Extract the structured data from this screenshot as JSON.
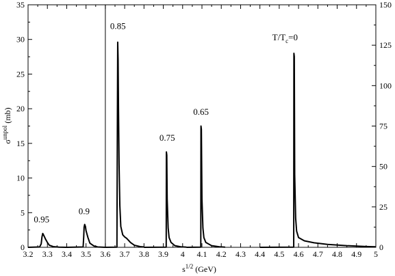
{
  "chart_data": {
    "type": "line",
    "xlabel": {
      "base": "s",
      "sup": "1/2",
      "unit": " (GeV)"
    },
    "ylabel_left": {
      "base": "σ",
      "sup": "unpol",
      "unit": " (mb)"
    },
    "x_ticks": [
      "3.2",
      "3.3",
      "3.4",
      "3.5",
      "3.6",
      "3.7",
      "3.8",
      "3.9",
      "4",
      "4.1",
      "4.2",
      "4.3",
      "4.4",
      "4.5",
      "4.6",
      "4.7",
      "4.8",
      "4.9",
      "5"
    ],
    "x_tick_values": [
      3.2,
      3.3,
      3.4,
      3.5,
      3.6,
      3.7,
      3.8,
      3.9,
      4.0,
      4.1,
      4.2,
      4.3,
      4.4,
      4.5,
      4.6,
      4.7,
      4.8,
      4.9,
      5.0
    ],
    "y_left_ticks": [
      "0",
      "5",
      "10",
      "15",
      "20",
      "25",
      "30",
      "35"
    ],
    "y_left_tick_values": [
      0,
      5,
      10,
      15,
      20,
      25,
      30,
      35
    ],
    "y_right_ticks": [
      "0",
      "25",
      "50",
      "75",
      "100",
      "125",
      "150"
    ],
    "y_right_tick_values": [
      0,
      25,
      50,
      75,
      100,
      125,
      150
    ],
    "xlim": [
      3.2,
      5.0
    ],
    "ylim_left": [
      0,
      35
    ],
    "ylim_right": [
      0,
      150
    ],
    "divider_x": 3.6,
    "series": [
      {
        "label": "0.95",
        "axis": "left",
        "label_at": [
          3.27,
          3.6
        ],
        "x": [
          3.2,
          3.26,
          3.268,
          3.272,
          3.276,
          3.28,
          3.29,
          3.3,
          3.31,
          3.33,
          3.36,
          3.4
        ],
        "y": [
          0,
          0.05,
          0.5,
          1.5,
          2.0,
          1.8,
          1.2,
          0.7,
          0.3,
          0.1,
          0.03,
          0
        ]
      },
      {
        "label": "0.9",
        "axis": "left",
        "label_at": [
          3.49,
          4.8
        ],
        "x": [
          3.4,
          3.485,
          3.488,
          3.49,
          3.493,
          3.497,
          3.5,
          3.51,
          3.52,
          3.54,
          3.56,
          3.6
        ],
        "y": [
          0,
          0.05,
          1.5,
          2.9,
          3.3,
          3.0,
          2.4,
          1.4,
          0.6,
          0.2,
          0.05,
          0
        ]
      },
      {
        "label": "0.85",
        "axis": "left",
        "label_at": [
          3.665,
          31.5
        ],
        "x": [
          3.6,
          3.66,
          3.6605,
          3.662,
          3.664,
          3.666,
          3.668,
          3.671,
          3.675,
          3.68,
          3.69,
          3.7,
          3.71,
          3.72,
          3.73,
          3.75,
          3.78,
          3.8
        ],
        "y": [
          0,
          0.02,
          5,
          16,
          29.6,
          27,
          20,
          12,
          6,
          3,
          1.8,
          1.5,
          1.3,
          1.0,
          0.7,
          0.3,
          0.1,
          0.05
        ]
      },
      {
        "label": "0.75",
        "axis": "right",
        "label_at": [
          3.92,
          66
        ],
        "x": [
          3.8,
          3.915,
          3.916,
          3.918,
          3.92,
          3.925,
          3.93,
          3.94,
          3.96,
          3.99,
          4.02
        ],
        "y": [
          0,
          0.1,
          59,
          57,
          30,
          12,
          6,
          3,
          1,
          0.3,
          0.1
        ]
      },
      {
        "label": "0.65",
        "axis": "right",
        "label_at": [
          4.095,
          82
        ],
        "x": [
          4.02,
          4.094,
          4.095,
          4.097,
          4.1,
          4.105,
          4.11,
          4.12,
          4.15,
          4.19,
          4.22
        ],
        "y": [
          0,
          0.1,
          75,
          73,
          30,
          12,
          6,
          3,
          1,
          0.3,
          0.1
        ]
      },
      {
        "label": "T/T",
        "label_sub": "c",
        "label_suffix": "=0",
        "axis": "right",
        "label_at": [
          4.53,
          128
        ],
        "x": [
          4.4,
          4.575,
          4.576,
          4.578,
          4.58,
          4.585,
          4.59,
          4.6,
          4.63,
          4.68,
          4.75,
          4.85,
          4.95,
          5.0
        ],
        "y": [
          0,
          0.1,
          120,
          118,
          45,
          18,
          10,
          6,
          4,
          2.8,
          1.8,
          1.0,
          0.5,
          0.3
        ]
      }
    ]
  }
}
